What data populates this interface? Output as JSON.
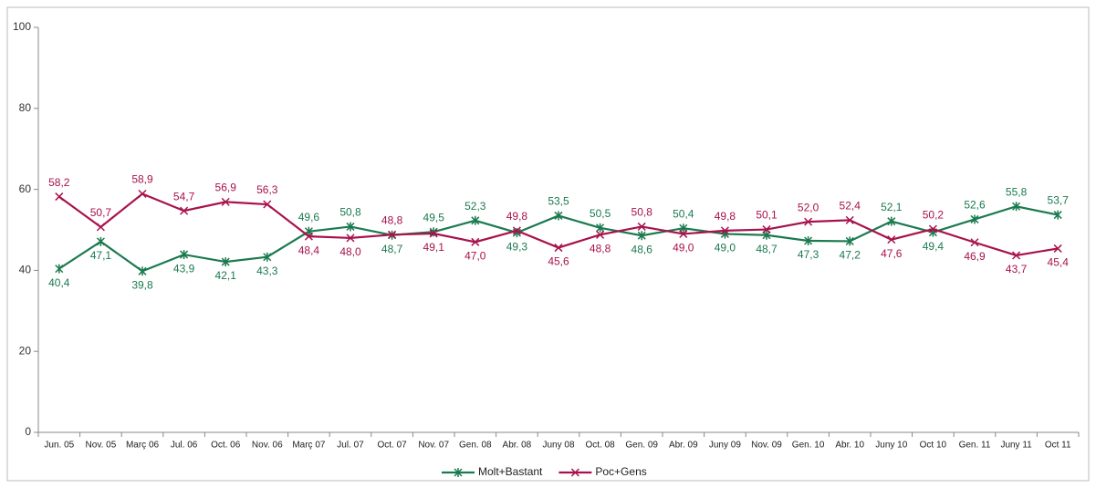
{
  "chart_data": {
    "type": "line",
    "categories": [
      "Jun. 05",
      "Nov. 05",
      "Març 06",
      "Jul. 06",
      "Oct. 06",
      "Nov. 06",
      "Març 07",
      "Jul. 07",
      "Oct. 07",
      "Nov. 07",
      "Gen. 08",
      "Abr. 08",
      "Juny 08",
      "Oct. 08",
      "Gen. 09",
      "Abr. 09",
      "Juny 09",
      "Nov. 09",
      "Gen. 10",
      "Abr. 10",
      "Juny 10",
      "Oct 10",
      "Gen. 11",
      "Juny 11",
      "Oct 11"
    ],
    "series": [
      {
        "name": "Molt+Bastant",
        "color": "#1b7a4f",
        "marker": "asterisk",
        "values": [
          40.4,
          47.1,
          39.8,
          43.9,
          42.1,
          43.3,
          49.6,
          50.8,
          48.7,
          49.5,
          52.3,
          49.3,
          53.5,
          50.5,
          48.6,
          50.4,
          49.0,
          48.7,
          47.3,
          47.2,
          52.1,
          49.4,
          52.6,
          55.8,
          53.7
        ],
        "value_labels": [
          "40,4",
          "47,1",
          "39,8",
          "43,9",
          "42,1",
          "43,3",
          "49,6",
          "50,8",
          "48,7",
          "49,5",
          "52,3",
          "49,3",
          "53,5",
          "50,5",
          "48,6",
          "50,4",
          "49,0",
          "48,7",
          "47,3",
          "47,2",
          "52,1",
          "49,4",
          "52,6",
          "55,8",
          "53,7"
        ]
      },
      {
        "name": "Poc+Gens",
        "color": "#a8124c",
        "marker": "x",
        "values": [
          58.2,
          50.7,
          58.9,
          54.7,
          56.9,
          56.3,
          48.4,
          48.0,
          48.8,
          49.1,
          47.0,
          49.8,
          45.6,
          48.8,
          50.8,
          49.0,
          49.8,
          50.1,
          52.0,
          52.4,
          47.6,
          50.2,
          46.9,
          43.7,
          45.4
        ],
        "value_labels": [
          "58,2",
          "50,7",
          "58,9",
          "54,7",
          "56,9",
          "56,3",
          "48,4",
          "48,0",
          "48,8",
          "49,1",
          "47,0",
          "49,8",
          "45,6",
          "48,8",
          "50,8",
          "49,0",
          "49,8",
          "50,1",
          "52,0",
          "52,4",
          "47,6",
          "50,2",
          "46,9",
          "43,7",
          "45,4"
        ]
      }
    ],
    "ylim": [
      0,
      100
    ],
    "yticks": [
      0,
      20,
      40,
      60,
      80,
      100
    ],
    "grid": false,
    "legend": "bottom"
  }
}
